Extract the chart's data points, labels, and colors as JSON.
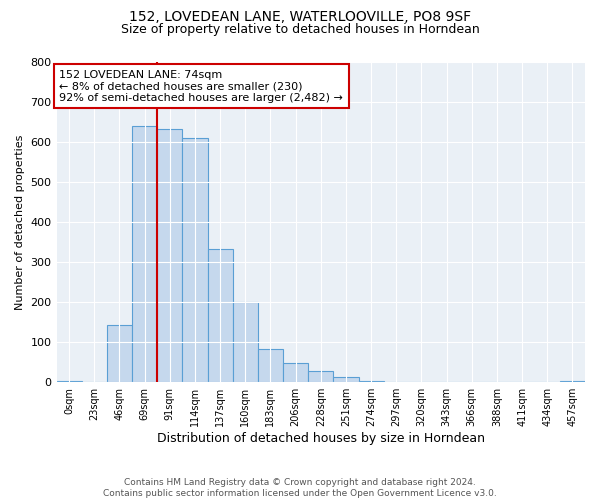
{
  "title": "152, LOVEDEAN LANE, WATERLOOVILLE, PO8 9SF",
  "subtitle": "Size of property relative to detached houses in Horndean",
  "xlabel": "Distribution of detached houses by size in Horndean",
  "ylabel": "Number of detached properties",
  "bar_labels": [
    "0sqm",
    "23sqm",
    "46sqm",
    "69sqm",
    "91sqm",
    "114sqm",
    "137sqm",
    "160sqm",
    "183sqm",
    "206sqm",
    "228sqm",
    "251sqm",
    "274sqm",
    "297sqm",
    "320sqm",
    "343sqm",
    "366sqm",
    "388sqm",
    "411sqm",
    "434sqm",
    "457sqm"
  ],
  "bar_values": [
    2,
    0,
    143,
    638,
    631,
    610,
    333,
    201,
    84,
    47,
    27,
    13,
    2,
    0,
    0,
    0,
    0,
    0,
    0,
    0,
    4
  ],
  "bar_color": "#c5d8ed",
  "bar_edge_color": "#5a9fd4",
  "vline_x_index": 3,
  "vline_color": "#cc0000",
  "ylim": [
    0,
    800
  ],
  "yticks": [
    0,
    100,
    200,
    300,
    400,
    500,
    600,
    700,
    800
  ],
  "annotation_title": "152 LOVEDEAN LANE: 74sqm",
  "annotation_line1": "← 8% of detached houses are smaller (230)",
  "annotation_line2": "92% of semi-detached houses are larger (2,482) →",
  "annotation_box_color": "#cc0000",
  "footer_line1": "Contains HM Land Registry data © Crown copyright and database right 2024.",
  "footer_line2": "Contains public sector information licensed under the Open Government Licence v3.0.",
  "background_color": "#eaf0f6",
  "plot_background": "#ffffff"
}
